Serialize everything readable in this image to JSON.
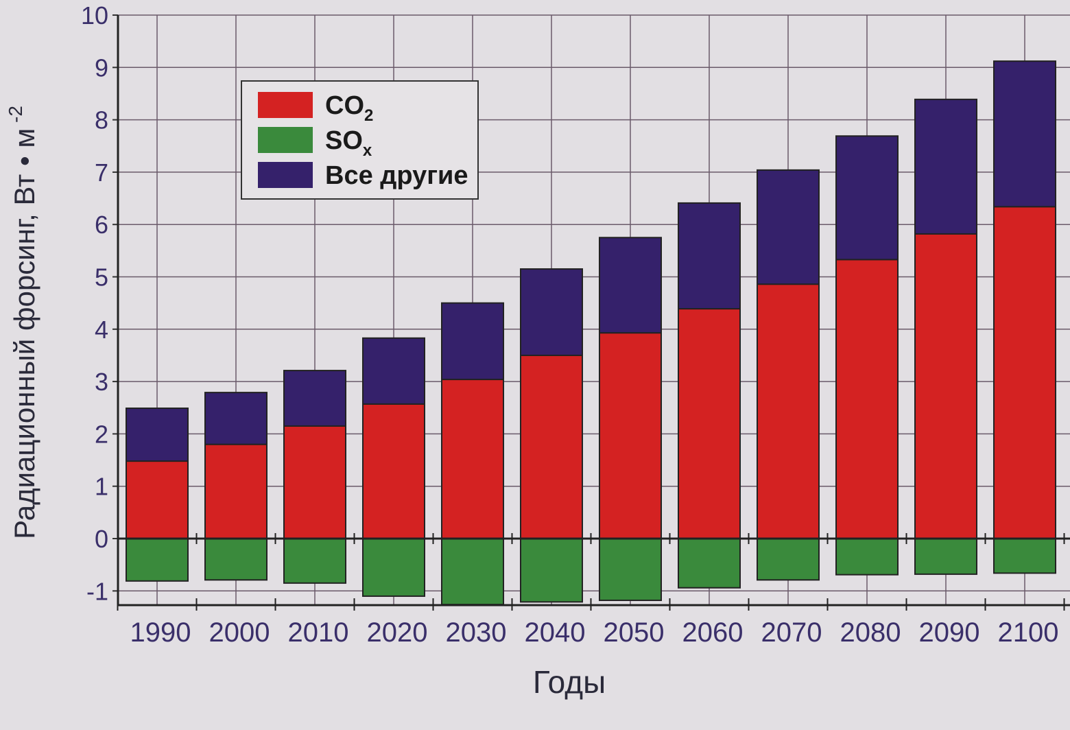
{
  "chart_data": {
    "type": "bar",
    "stacked": true,
    "title": "",
    "xlabel": "Годы",
    "ylabel": "Радиационный форсинг, Вт • м",
    "ylabel_sup": "-2",
    "ylim": [
      -1.3,
      10
    ],
    "yticks": [
      -1,
      0,
      1,
      2,
      3,
      4,
      5,
      6,
      7,
      8,
      9,
      10
    ],
    "grid": true,
    "legend_position": "top-left",
    "categories": [
      "1990",
      "2000",
      "2010",
      "2020",
      "2030",
      "2040",
      "2050",
      "2060",
      "2070",
      "2080",
      "2090",
      "2100"
    ],
    "series": [
      {
        "name": "CO",
        "sub": "2",
        "color": "#d42222",
        "values": [
          1.48,
          1.8,
          2.15,
          2.57,
          3.04,
          3.5,
          3.93,
          4.39,
          4.86,
          5.33,
          5.82,
          6.34
        ]
      },
      {
        "name": "SO",
        "sub": "x",
        "color": "#3a8a3c",
        "values": [
          -0.81,
          -0.79,
          -0.85,
          -1.1,
          -1.26,
          -1.21,
          -1.18,
          -0.94,
          -0.79,
          -0.69,
          -0.68,
          -0.66
        ]
      },
      {
        "name": "Все другие",
        "sub": "",
        "color": "#35216b",
        "values": [
          1.01,
          0.99,
          1.06,
          1.26,
          1.46,
          1.65,
          1.82,
          2.02,
          2.18,
          2.36,
          2.57,
          2.78
        ]
      }
    ]
  }
}
